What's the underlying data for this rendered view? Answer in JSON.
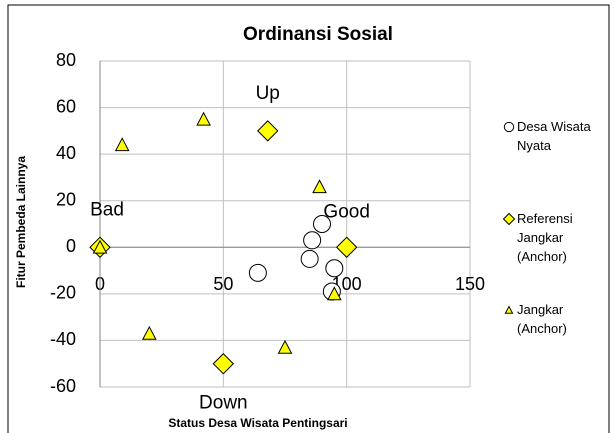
{
  "chart_data": {
    "type": "scatter",
    "title": "Ordinansi Sosial",
    "x_label": "Status Desa Wisata Pentingsari",
    "y_label": "Fitur Pembeda Lainnya",
    "xlim": [
      0,
      150
    ],
    "xticks": [
      0,
      50,
      100,
      150
    ],
    "ylim": [
      -60,
      80
    ],
    "yticks": [
      -60,
      -40,
      -20,
      0,
      20,
      40,
      60,
      80
    ],
    "grid": true,
    "legend": "right",
    "series": [
      {
        "name": "Desa Wisata Nyata",
        "color": "#ffffff",
        "marker": "circle",
        "x": [
          64,
          86,
          85,
          90,
          95,
          94
        ],
        "values": [
          -11,
          3,
          -5,
          10,
          -9,
          -19
        ]
      },
      {
        "name": "Referensi Jangkar (Anchor)",
        "color": "#ffff00",
        "marker": "diamond",
        "x": [
          0,
          100,
          68,
          50
        ],
        "values": [
          0,
          0,
          50,
          -50
        ]
      },
      {
        "name": "Jangkar (Anchor)",
        "color": "#ffff00",
        "marker": "triangle",
        "x": [
          0,
          9,
          42,
          89,
          20,
          75,
          95
        ],
        "values": [
          0,
          44,
          55,
          26,
          -37,
          -43,
          -20
        ]
      }
    ],
    "annotations": [
      "Bad",
      "Good",
      "Up",
      "Down"
    ]
  }
}
